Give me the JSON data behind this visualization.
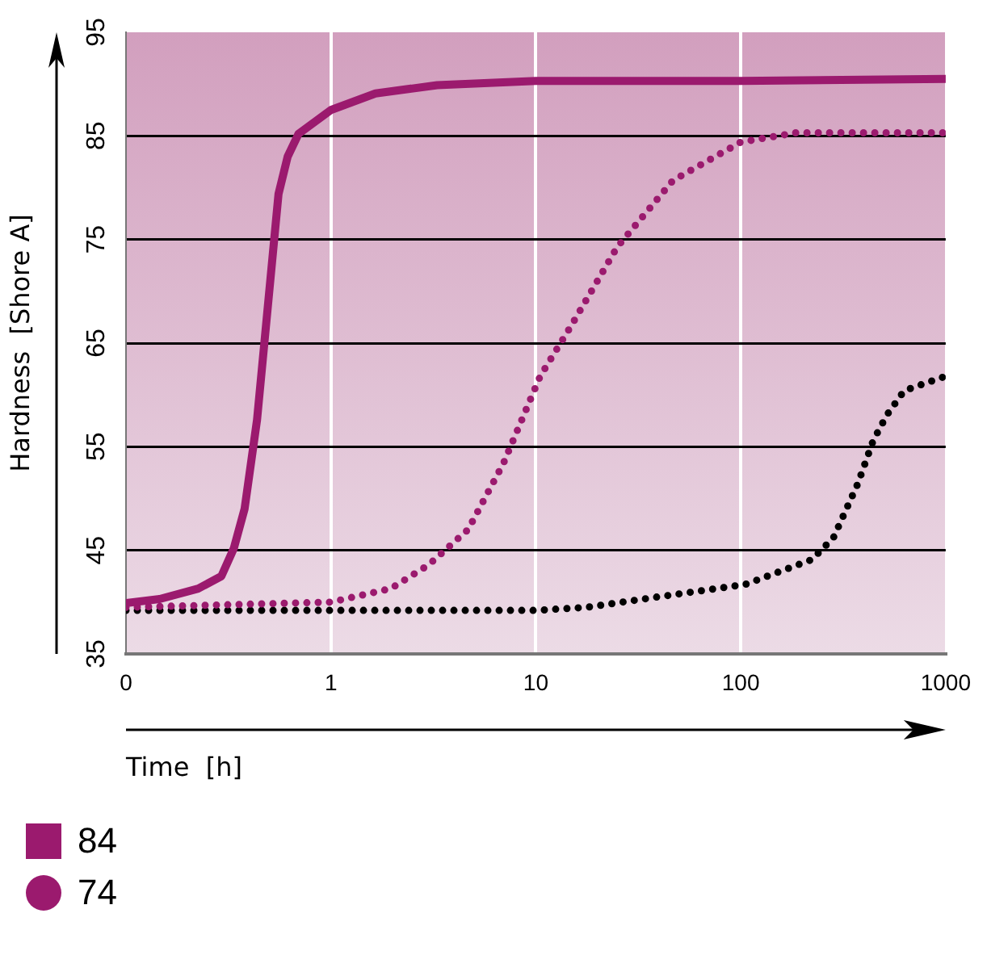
{
  "chart_data": {
    "type": "line",
    "xlabel": "Time  [h]",
    "ylabel": "Hardness  [Shore A]",
    "log": "x",
    "xlim": [
      0.1,
      1000
    ],
    "xticks": [
      {
        "value": 0.1,
        "label": "0"
      },
      1,
      10,
      100,
      1000
    ],
    "ylim": [
      35,
      95
    ],
    "yticks": [
      35,
      45,
      55,
      65,
      75,
      85,
      95
    ],
    "grid": true,
    "legend": "bottom left",
    "series": [
      {
        "name": "84",
        "color": "#9b1a6e",
        "line_style": "solid",
        "x": [
          0.1,
          0.146,
          0.225,
          0.292,
          0.336,
          0.379,
          0.436,
          0.492,
          0.555,
          0.615,
          0.695,
          1,
          1.65,
          3.3,
          10,
          100,
          1000
        ],
        "values": [
          39.9,
          40.3,
          41.3,
          42.5,
          45.2,
          49,
          57.6,
          68.5,
          79.4,
          83,
          85.2,
          87.5,
          89.1,
          89.9,
          90.3,
          90.3,
          90.5
        ]
      },
      {
        "name": "74",
        "color": "#9b1a6e",
        "line_style": "dotted",
        "x": [
          0.1,
          1,
          1.96,
          3,
          4.67,
          6.95,
          10.5,
          14.9,
          25,
          46.7,
          100,
          186,
          1000
        ],
        "values": [
          39.5,
          40,
          41.3,
          43.6,
          47,
          53.4,
          61.8,
          66.7,
          74.3,
          80.7,
          84.4,
          85.3,
          85.3
        ]
      },
      {
        "color": "#000000",
        "line_style": "dotted",
        "x": [
          0.1,
          10,
          17.7,
          39.3,
          105,
          222,
          283,
          372,
          443,
          518,
          627,
          871,
          1000
        ],
        "values": [
          39.2,
          39.2,
          39.5,
          40.5,
          41.7,
          44.1,
          46.2,
          51.4,
          55.6,
          58.1,
          60.4,
          61.4,
          61.8
        ]
      }
    ]
  }
}
